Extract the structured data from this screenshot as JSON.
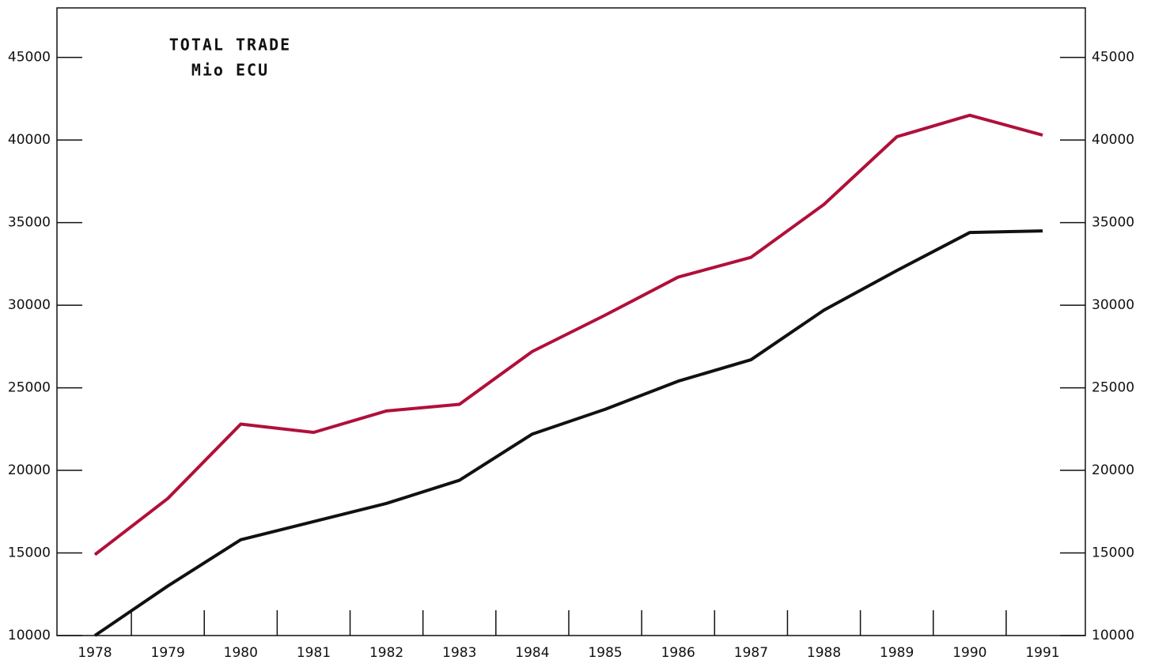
{
  "chart_data": {
    "type": "line",
    "title": "TOTAL TRADE",
    "subtitle": "Mio ECU",
    "categories": [
      "1978",
      "1979",
      "1980",
      "1981",
      "1982",
      "1983",
      "1984",
      "1985",
      "1986",
      "1987",
      "1988",
      "1989",
      "1990",
      "1991"
    ],
    "series": [
      {
        "color": "#b0103a",
        "values": [
          14900,
          18300,
          22800,
          22300,
          23600,
          24000,
          27200,
          29400,
          31700,
          32900,
          36100,
          40200,
          41500,
          40300
        ]
      },
      {
        "color": "#111111",
        "values": [
          10000,
          13000,
          15800,
          16900,
          18000,
          19400,
          22200,
          23700,
          25400,
          26700,
          29700,
          32100,
          34400,
          34500
        ]
      }
    ],
    "ylim": [
      10000,
      48000
    ],
    "yticks": [
      10000,
      15000,
      20000,
      25000,
      30000,
      35000,
      40000,
      45000
    ],
    "y2lim": [
      10000,
      48000
    ],
    "y2ticks": [
      10000,
      15000,
      20000,
      25000,
      30000,
      35000,
      40000,
      45000
    ]
  }
}
